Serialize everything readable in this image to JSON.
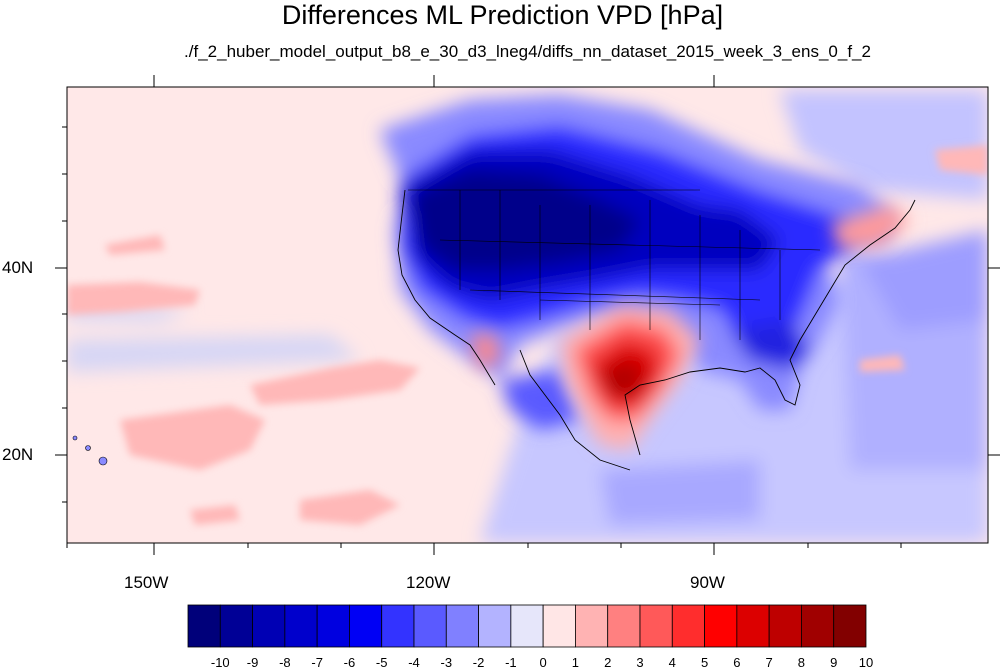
{
  "title": "Differences ML Prediction VPD [hPa]",
  "subtitle": "./f_2_huber_model_output_b8_e_30_d3_lneg4/diffs_nn_dataset_2015_week_3_ens_0_f_2",
  "map": {
    "lon_labels": [
      "150W",
      "120W",
      "90W"
    ],
    "lat_labels": [
      "40N",
      "20N"
    ],
    "lon_range": [
      "160W",
      "62W"
    ],
    "lat_range": [
      "11N",
      "58N"
    ],
    "land_value_summary": [
      {
        "region": "Western and northern US / southern Canada",
        "level": -10
      },
      {
        "region": "Texas / northern Mexico",
        "level": 8
      },
      {
        "region": "Northeast US / Maine",
        "level": 2
      },
      {
        "region": "Southeast US / Gulf coast",
        "level": -5
      },
      {
        "region": "Central Mexico",
        "level": -4
      }
    ],
    "ocean_value_summary": [
      {
        "region": "Northeast Pacific",
        "level": 1
      },
      {
        "region": "Subtropical Pacific patches",
        "level": 2
      },
      {
        "region": "Caribbean / Gulf of Mexico",
        "level": -2
      },
      {
        "region": "North Atlantic",
        "level": -2
      }
    ]
  },
  "colorbar": {
    "labels": [
      "-10",
      "-9",
      "-8",
      "-7",
      "-6",
      "-5",
      "-4",
      "-3",
      "-2",
      "-1",
      "0",
      "1",
      "2",
      "3",
      "4",
      "5",
      "6",
      "7",
      "8",
      "9",
      "10"
    ],
    "colors": [
      "#00007a",
      "#000096",
      "#0000b4",
      "#0000cc",
      "#0000e0",
      "#0000f5",
      "#3333ff",
      "#5a5aff",
      "#8080ff",
      "#b3b3ff",
      "#e6e6fa",
      "#ffe6e6",
      "#ffb3b3",
      "#ff8080",
      "#ff5959",
      "#ff2d2d",
      "#ff0000",
      "#dc0000",
      "#be0000",
      "#a00000",
      "#820000"
    ]
  }
}
